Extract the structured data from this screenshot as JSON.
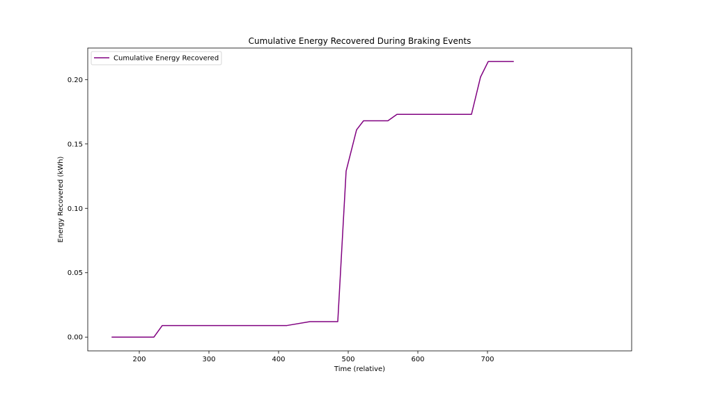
{
  "chart_data": {
    "type": "line",
    "title": "Cumulative Energy Recovered During Braking Events",
    "xlabel": "Time (relative)",
    "ylabel": "Energy Recovered (kWh)",
    "xlim": [
      126,
      907
    ],
    "ylim": [
      -0.0107,
      0.2245
    ],
    "xticks": [
      200,
      300,
      400,
      500,
      600,
      700
    ],
    "yticks": [
      0.0,
      0.05,
      0.1,
      0.15,
      0.2
    ],
    "xtick_labels": [
      "200",
      "300",
      "400",
      "500",
      "600",
      "700"
    ],
    "ytick_labels": [
      "0.00",
      "0.05",
      "0.10",
      "0.15",
      "0.20"
    ],
    "grid": false,
    "legend_position": "upper left",
    "series": [
      {
        "name": "Cumulative Energy Recovered",
        "color": "#800080",
        "x": [
          161,
          221,
          233,
          412,
          445,
          485,
          497,
          512,
          522,
          557,
          570,
          677,
          690,
          701,
          737
        ],
        "y": [
          0.0,
          0.0,
          0.009,
          0.009,
          0.012,
          0.012,
          0.129,
          0.161,
          0.168,
          0.168,
          0.173,
          0.173,
          0.202,
          0.214,
          0.214
        ]
      }
    ]
  }
}
